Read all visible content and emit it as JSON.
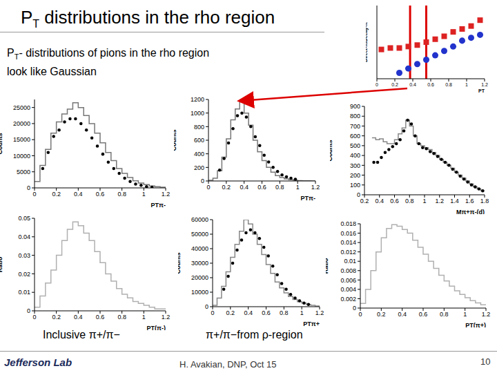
{
  "title": {
    "lead": "P",
    "sub": "T",
    "rest": " distributions in the rho region"
  },
  "subtitle": {
    "lead": "P",
    "sub": "T",
    "lines": [
      "- distributions of pions in the rho region",
      "look like Gaussian"
    ]
  },
  "chart_data": [
    {
      "type": "histogram",
      "y_label": "Counts",
      "x_label": "PTπ-",
      "line_style": "step",
      "color": "#777777",
      "bins": [
        0,
        0.05,
        0.1,
        0.15,
        0.2,
        0.25,
        0.3,
        0.35,
        0.4,
        0.45,
        0.5,
        0.55,
        0.6,
        0.65,
        0.7,
        0.75,
        0.8,
        0.85,
        0.9,
        0.95,
        1,
        1.05,
        1.1,
        1.15,
        1.2
      ],
      "counts": [
        2000,
        7000,
        12000,
        17000,
        20500,
        23000,
        24500,
        26500,
        25000,
        22500,
        20000,
        17000,
        14000,
        11000,
        8500,
        6000,
        4500,
        3200,
        2200,
        1500,
        1000,
        600,
        400,
        200
      ],
      "series": [
        {
          "type": "scatter",
          "color": "#000000",
          "marker": "circle",
          "x": [
            0.075,
            0.125,
            0.175,
            0.225,
            0.275,
            0.325,
            0.375,
            0.425,
            0.475,
            0.525,
            0.575,
            0.625,
            0.675,
            0.725,
            0.775,
            0.825,
            0.875,
            0.925,
            0.975,
            1.025,
            1.075
          ],
          "values": [
            6000,
            11000,
            16000,
            18000,
            20500,
            21500,
            21500,
            20000,
            18000,
            15500,
            13000,
            10500,
            8000,
            6000,
            4500,
            3000,
            2000,
            1200,
            800,
            400,
            200
          ]
        }
      ],
      "xlim": [
        0,
        1.2
      ],
      "xticks": [
        0,
        0.2,
        0.4,
        0.6,
        0.8,
        1,
        1.2
      ],
      "ylim": [
        0,
        27500
      ],
      "yticks": [
        0,
        5000,
        10000,
        15000,
        20000,
        25000
      ]
    },
    {
      "type": "histogram",
      "y_label": "Counts",
      "x_label": "PTπ-",
      "line_style": "step",
      "color": "#777777",
      "bins": [
        0,
        0.05,
        0.1,
        0.15,
        0.2,
        0.25,
        0.3,
        0.35,
        0.4,
        0.45,
        0.5,
        0.55,
        0.6,
        0.65,
        0.7,
        0.75,
        0.8,
        0.85,
        0.9,
        0.95,
        1,
        1.05,
        1.1,
        1.15,
        1.2
      ],
      "counts": [
        10,
        40,
        150,
        350,
        620,
        900,
        1060,
        1170,
        1000,
        820,
        600,
        430,
        300,
        200,
        130,
        80,
        50,
        30,
        20,
        10,
        5,
        3,
        2,
        1
      ],
      "series": [
        {
          "type": "scatter",
          "color": "#000000",
          "marker": "circle",
          "x": [
            0.125,
            0.175,
            0.225,
            0.275,
            0.325,
            0.375,
            0.425,
            0.475,
            0.525,
            0.575,
            0.625,
            0.675,
            0.725,
            0.775,
            0.825,
            0.875,
            0.925,
            0.975
          ],
          "values": [
            160,
            330,
            560,
            770,
            960,
            1000,
            940,
            800,
            650,
            520,
            380,
            280,
            200,
            140,
            90,
            60,
            40,
            25
          ]
        }
      ],
      "xlim": [
        0,
        1.2
      ],
      "xticks": [
        0,
        0.2,
        0.4,
        0.6,
        0.8,
        1,
        1.2
      ],
      "ylim": [
        0,
        1200
      ],
      "yticks": [
        0,
        200,
        400,
        600,
        800,
        1000,
        1200
      ]
    },
    {
      "type": "histogram",
      "y_label": "Counts",
      "x_label": "Mπ+π-(d)",
      "line_style": "step",
      "color": "#888888",
      "bins": [
        0.3,
        0.35,
        0.4,
        0.45,
        0.5,
        0.55,
        0.6,
        0.65,
        0.7,
        0.75,
        0.8,
        0.85,
        0.9,
        0.95,
        1,
        1.05,
        1.1,
        1.15,
        1.2,
        1.25,
        1.3,
        1.35,
        1.4,
        1.45,
        1.5,
        1.55,
        1.6,
        1.65,
        1.7,
        1.75,
        1.8
      ],
      "counts": [
        580,
        560,
        570,
        540,
        520,
        520,
        560,
        620,
        680,
        760,
        700,
        600,
        520,
        500,
        480,
        460,
        430,
        400,
        360,
        330,
        300,
        270,
        230,
        200,
        170,
        140,
        110,
        80,
        60,
        40
      ],
      "series": [
        {
          "type": "scatter",
          "color": "#000000",
          "marker": "circle",
          "x": [
            0.325,
            0.375,
            0.425,
            0.475,
            0.525,
            0.575,
            0.625,
            0.675,
            0.725,
            0.775,
            0.825,
            0.875,
            0.925,
            0.975,
            1.025,
            1.075,
            1.125,
            1.175,
            1.225,
            1.275,
            1.325,
            1.375,
            1.425,
            1.475,
            1.525,
            1.575,
            1.625,
            1.675,
            1.725,
            1.775
          ],
          "values": [
            330,
            330,
            380,
            430,
            460,
            490,
            520,
            560,
            650,
            760,
            720,
            600,
            520,
            480,
            470,
            440,
            420,
            390,
            360,
            330,
            300,
            260,
            230,
            190,
            160,
            130,
            100,
            80,
            60,
            40
          ]
        }
      ],
      "xlim": [
        0.2,
        1.8
      ],
      "xticks": [
        0.2,
        0.4,
        0.6,
        0.8,
        1,
        1.2,
        1.4,
        1.6,
        1.8
      ],
      "ylim": [
        0,
        900
      ],
      "yticks": [
        0,
        100,
        200,
        300,
        400,
        500,
        600,
        700,
        800,
        900
      ]
    },
    {
      "type": "histogram",
      "y_label": "Ratio",
      "x_label": "PT(π-)",
      "line_style": "step",
      "color": "#b0b0b0",
      "bins": [
        0,
        0.05,
        0.1,
        0.15,
        0.2,
        0.25,
        0.3,
        0.35,
        0.4,
        0.45,
        0.5,
        0.55,
        0.6,
        0.65,
        0.7,
        0.75,
        0.8,
        0.85,
        0.9,
        0.95,
        1,
        1.05,
        1.1,
        1.15,
        1.2
      ],
      "counts": [
        0.002,
        0.008,
        0.015,
        0.022,
        0.03,
        0.038,
        0.044,
        0.048,
        0.046,
        0.042,
        0.038,
        0.032,
        0.026,
        0.02,
        0.016,
        0.012,
        0.009,
        0.007,
        0.005,
        0.004,
        0.003,
        0.002,
        0.001,
        0.001
      ],
      "xlim": [
        0,
        1.2
      ],
      "xticks": [
        0,
        0.2,
        0.4,
        0.6,
        0.8,
        1,
        1.2
      ],
      "ylim": [
        0,
        0.05
      ],
      "yticks": [
        0,
        0.01,
        0.02,
        0.03,
        0.04,
        0.05
      ]
    },
    {
      "type": "histogram",
      "y_label": "Counts",
      "x_label": "PTπ+",
      "line_style": "step",
      "color": "#888888",
      "bins": [
        0,
        0.05,
        0.1,
        0.15,
        0.2,
        0.25,
        0.3,
        0.35,
        0.4,
        0.45,
        0.5,
        0.55,
        0.6,
        0.65,
        0.7,
        0.75,
        0.8,
        0.85,
        0.9,
        0.95,
        1,
        1.05,
        1.1,
        1.15,
        1.2
      ],
      "counts": [
        1000,
        6000,
        14000,
        24000,
        34000,
        43000,
        52000,
        60000,
        57000,
        50000,
        43000,
        36000,
        29000,
        23000,
        17000,
        13000,
        9500,
        7000,
        5000,
        3500,
        2500,
        1500,
        1000,
        500
      ],
      "series": [
        {
          "type": "scatter",
          "color": "#000000",
          "marker": "circle",
          "x": [
            0.125,
            0.175,
            0.225,
            0.275,
            0.325,
            0.375,
            0.425,
            0.475,
            0.525,
            0.575,
            0.625,
            0.675,
            0.725,
            0.775,
            0.825,
            0.875,
            0.925,
            0.975,
            1.025,
            1.075
          ],
          "values": [
            12000,
            21000,
            30000,
            39000,
            46000,
            51000,
            53000,
            51000,
            47000,
            41000,
            35000,
            28000,
            22000,
            16000,
            12000,
            8500,
            6000,
            4000,
            2500,
            1500
          ]
        }
      ],
      "xlim": [
        0,
        1.2
      ],
      "xticks": [
        0,
        0.2,
        0.4,
        0.6,
        0.8,
        1,
        1.2
      ],
      "ylim": [
        0,
        60000
      ],
      "yticks": [
        0,
        10000,
        20000,
        30000,
        40000,
        50000,
        60000
      ]
    },
    {
      "type": "histogram",
      "y_label": "Ratio",
      "x_label": "PT(π+)",
      "line_style": "step",
      "color": "#b0b0b0",
      "bins": [
        0,
        0.05,
        0.1,
        0.15,
        0.2,
        0.25,
        0.3,
        0.35,
        0.4,
        0.45,
        0.5,
        0.55,
        0.6,
        0.65,
        0.7,
        0.75,
        0.8,
        0.85,
        0.9,
        0.95,
        1,
        1.05,
        1.1,
        1.15,
        1.2
      ],
      "counts": [
        0.001,
        0.004,
        0.008,
        0.012,
        0.015,
        0.017,
        0.0178,
        0.0175,
        0.0168,
        0.016,
        0.0145,
        0.013,
        0.0115,
        0.01,
        0.0085,
        0.007,
        0.0058,
        0.0047,
        0.0037,
        0.0029,
        0.0022,
        0.0016,
        0.0011,
        0.0007
      ],
      "xlim": [
        0,
        1.2
      ],
      "xticks": [
        0,
        0.2,
        0.4,
        0.6,
        0.8,
        1,
        1.2
      ],
      "ylim": [
        0,
        0.018
      ],
      "yticks": [
        0,
        0.002,
        0.004,
        0.006,
        0.008,
        0.01,
        0.012,
        0.014,
        0.016,
        0.018
      ]
    },
    {
      "type": "scatter",
      "y_label": "Direct-π/Decay-π",
      "x_label": "PT",
      "tick_labels": "x",
      "series": [
        {
          "type": "scatter",
          "color": "#dd2222",
          "marker": "square",
          "x": [
            0.05,
            0.15,
            0.25,
            0.35,
            0.45,
            0.55,
            0.65,
            0.75,
            0.85,
            0.95,
            1.05,
            1.15
          ],
          "values": [
            1.0,
            1.05,
            1.05,
            1.1,
            1.15,
            1.25,
            1.35,
            1.45,
            1.6,
            1.7,
            1.8,
            2.0
          ]
        },
        {
          "type": "scatter",
          "color": "#2233cc",
          "marker": "circle",
          "x": [
            0.25,
            0.35,
            0.45,
            0.55,
            0.65,
            0.75,
            0.85,
            0.95,
            1.05,
            1.15
          ],
          "values": [
            0.2,
            0.35,
            0.5,
            0.65,
            0.8,
            0.95,
            1.1,
            1.3,
            1.4,
            1.5
          ]
        }
      ],
      "reference_lines": {
        "x": [
          0.37,
          0.55
        ],
        "color": "#dd0000"
      },
      "xlim": [
        0,
        1.2
      ],
      "xticks": [
        0,
        0.2,
        0.4,
        0.6,
        0.8,
        1,
        1.2
      ],
      "ylim": [
        0,
        2.5
      ]
    }
  ],
  "captions": [
    "Inclusive π+/π−",
    "π+/π−from ρ-region"
  ],
  "footer": {
    "logo": "Jefferson Lab",
    "author": "H. Avakian, DNP, Oct 15",
    "page": "10"
  }
}
